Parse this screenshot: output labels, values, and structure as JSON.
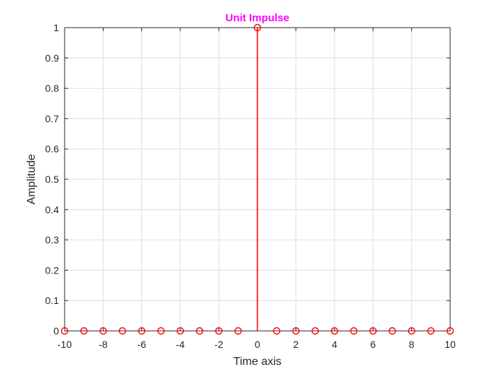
{
  "chart_data": {
    "type": "stem",
    "title": "Unit Impulse",
    "xlabel": "Time axis",
    "ylabel": "Amplitude",
    "xlim": [
      -10,
      10
    ],
    "ylim": [
      0,
      1
    ],
    "grid": true,
    "x": [
      -10,
      -9,
      -8,
      -7,
      -6,
      -5,
      -4,
      -3,
      -2,
      -1,
      0,
      1,
      2,
      3,
      4,
      5,
      6,
      7,
      8,
      9,
      10
    ],
    "y": [
      0,
      0,
      0,
      0,
      0,
      0,
      0,
      0,
      0,
      0,
      1,
      0,
      0,
      0,
      0,
      0,
      0,
      0,
      0,
      0,
      0
    ],
    "x_ticks": [
      -10,
      -8,
      -6,
      -4,
      -2,
      0,
      2,
      4,
      6,
      8,
      10
    ],
    "x_tick_labels": [
      "-10",
      "-8",
      "-6",
      "-4",
      "-2",
      "0",
      "2",
      "4",
      "6",
      "8",
      "10"
    ],
    "y_ticks": [
      0,
      0.1,
      0.2,
      0.3,
      0.4,
      0.5,
      0.6,
      0.7,
      0.8,
      0.9,
      1
    ],
    "y_tick_labels": [
      "0",
      "0.1",
      "0.2",
      "0.3",
      "0.4",
      "0.5",
      "0.6",
      "0.7",
      "0.8",
      "0.9",
      "1"
    ],
    "colors": {
      "stem": "#ff0000",
      "title": "#ff00ff",
      "grid": "#dedede",
      "axes": "#262626"
    },
    "marker": "circle"
  }
}
